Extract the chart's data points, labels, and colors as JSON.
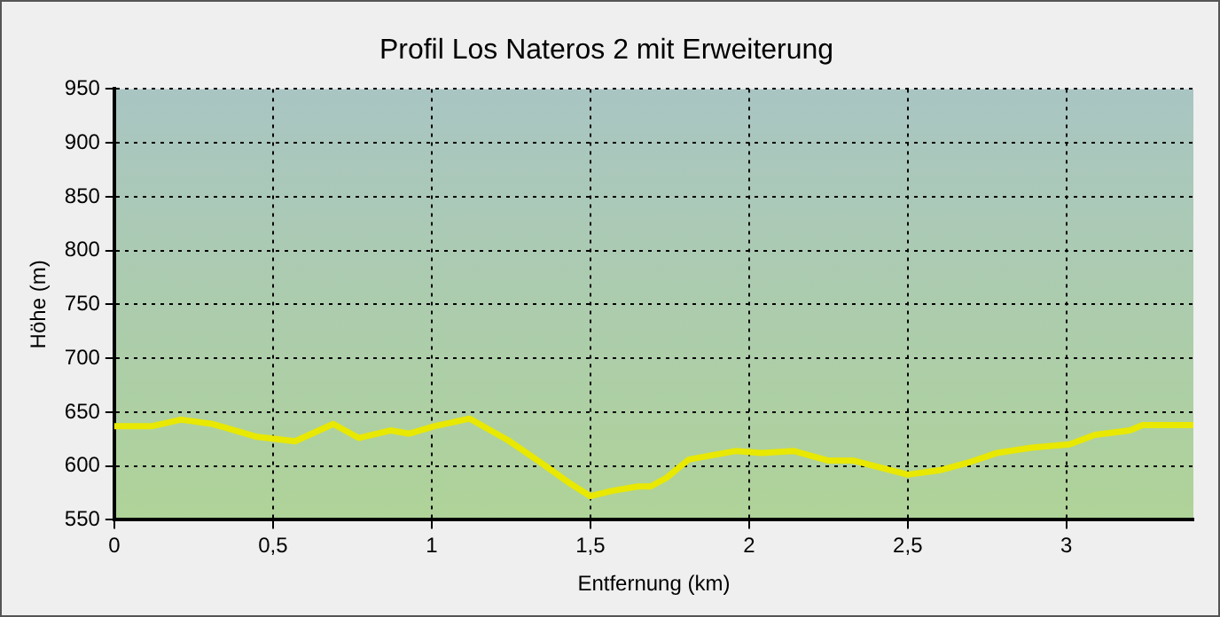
{
  "chart_data": {
    "type": "line",
    "title": "Profil Los Nateros 2 mit Erweiterung",
    "xlabel": "Entfernung (km)",
    "ylabel": "Höhe (m)",
    "x": [
      0,
      0.12,
      0.21,
      0.31,
      0.45,
      0.57,
      0.69,
      0.77,
      0.87,
      0.93,
      1.01,
      1.12,
      1.24,
      1.34,
      1.44,
      1.5,
      1.57,
      1.65,
      1.69,
      1.74,
      1.81,
      1.96,
      2.04,
      2.14,
      2.25,
      2.33,
      2.5,
      2.6,
      2.7,
      2.78,
      2.89,
      3.01,
      3.09,
      3.2,
      3.24,
      3.4
    ],
    "series": [
      {
        "color": "#e8e800",
        "values": [
          637,
          637,
          643,
          639,
          627,
          623,
          639,
          626,
          633,
          630,
          637,
          644,
          624,
          604,
          583,
          572,
          577,
          581,
          581,
          589,
          606,
          614,
          612,
          614,
          605,
          605,
          592,
          596,
          604,
          612,
          617,
          620,
          629,
          633,
          638,
          638
        ]
      }
    ],
    "xlim": [
      0,
      3.4
    ],
    "xticks": [
      0,
      {
        "value": 0.5,
        "label": "0,5"
      },
      1,
      {
        "value": 1.5,
        "label": "1,5"
      },
      2,
      {
        "value": 2.5,
        "label": "2,5"
      },
      3
    ],
    "ylim": [
      550,
      950
    ],
    "yticks": [
      550,
      600,
      650,
      700,
      750,
      800,
      850,
      900,
      950
    ],
    "grid": true,
    "legend": false,
    "marker": "none",
    "line_style": "solid"
  }
}
